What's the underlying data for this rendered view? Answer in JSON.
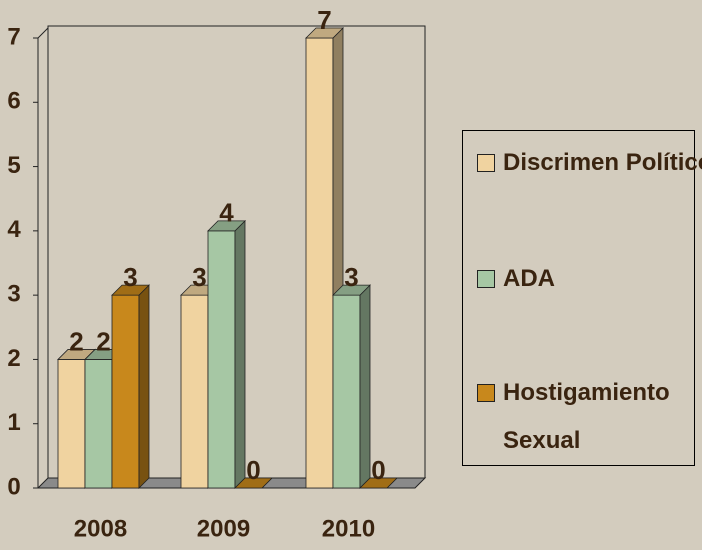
{
  "chart_data": {
    "type": "bar",
    "categories": [
      "2008",
      "2009",
      "2010"
    ],
    "series": [
      {
        "name": "Discrimen Político",
        "color": "#f0d3a0",
        "values": [
          2,
          3,
          7
        ]
      },
      {
        "name": "ADA",
        "color": "#a6c7a4",
        "values": [
          2,
          4,
          3
        ]
      },
      {
        "name": "Hostigamiento Sexual",
        "color": "#c8881c",
        "values": [
          3,
          0,
          0
        ]
      }
    ],
    "ylim": [
      0,
      7
    ],
    "yticks": [
      0,
      1,
      2,
      3,
      4,
      5,
      6,
      7
    ]
  }
}
